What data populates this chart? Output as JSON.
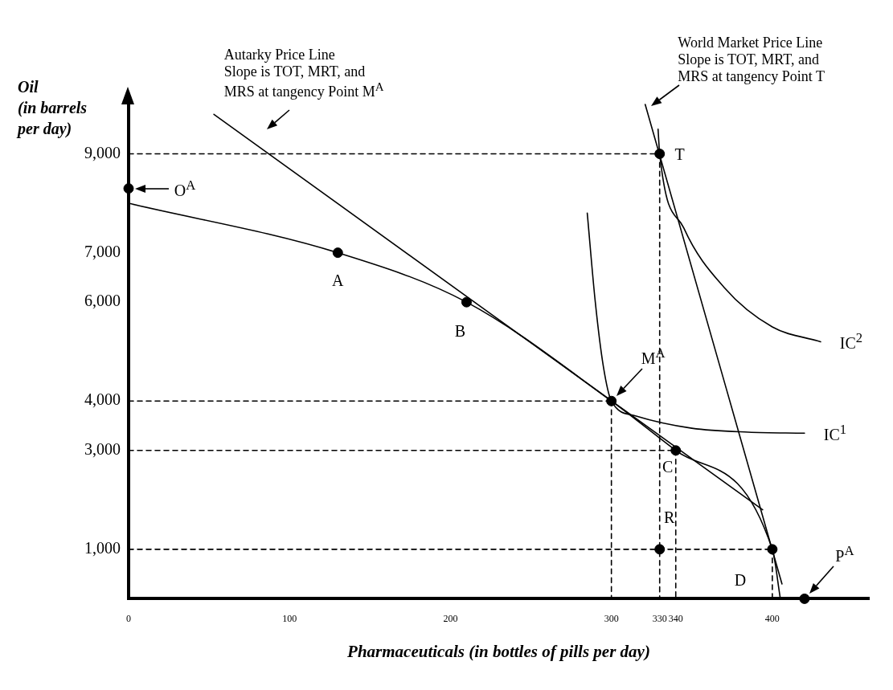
{
  "chart_data": {
    "type": "line",
    "xlabel": "Pharmaceuticals (in bottles of pills per day)",
    "ylabel": "Oil\n(in barrels\nper day)",
    "xlim": [
      0,
      460
    ],
    "ylim": [
      0,
      10000
    ],
    "xticks": [
      0,
      100,
      200,
      300,
      330,
      340,
      400
    ],
    "yticks": [
      {
        "value": 1000,
        "label": "1,000"
      },
      {
        "value": 3000,
        "label": "3,000"
      },
      {
        "value": 4000,
        "label": "4,000"
      },
      {
        "value": 6000,
        "label": "6,000"
      },
      {
        "value": 7000,
        "label": "7,000"
      },
      {
        "value": 9000,
        "label": "9,000"
      }
    ],
    "grid": false,
    "legend": false,
    "series": [
      {
        "color": "#000000",
        "line_style": "solid",
        "marker": "none",
        "x": [
          0,
          130,
          210,
          300,
          340,
          400,
          405
        ],
        "values": [
          8000,
          7000,
          6000,
          4000,
          3000,
          1000,
          0
        ]
      },
      {
        "color": "#000000",
        "line_style": "solid",
        "marker": "none",
        "x": [
          53,
          394
        ],
        "values": [
          9800,
          1800
        ]
      },
      {
        "color": "#000000",
        "line_style": "solid",
        "marker": "none",
        "x": [
          321,
          406
        ],
        "values": [
          10000,
          300
        ]
      },
      {
        "color": "#000000",
        "line_style": "solid",
        "marker": "none",
        "x": [
          285,
          290,
          295,
          300,
          315,
          350,
          385,
          420
        ],
        "values": [
          7800,
          6000,
          4700,
          4000,
          3700,
          3450,
          3370,
          3350
        ]
      },
      {
        "color": "#000000",
        "line_style": "solid",
        "marker": "none",
        "x": [
          329,
          330,
          345,
          370,
          400,
          430
        ],
        "values": [
          9500,
          9000,
          7500,
          6300,
          5500,
          5200
        ]
      },
      {
        "type": "line",
        "color": "#000000",
        "line_style": "dashed",
        "marker": "none",
        "x": [
          0,
          330
        ],
        "values": [
          9000,
          9000
        ]
      },
      {
        "type": "line",
        "color": "#000000",
        "line_style": "dashed",
        "marker": "none",
        "x": [
          0,
          300
        ],
        "values": [
          4000,
          4000
        ]
      },
      {
        "type": "line",
        "color": "#000000",
        "line_style": "dashed",
        "marker": "none",
        "x": [
          0,
          340
        ],
        "values": [
          3000,
          3000
        ]
      },
      {
        "type": "line",
        "color": "#000000",
        "line_style": "dashed",
        "marker": "none",
        "x": [
          0,
          400
        ],
        "values": [
          1000,
          1000
        ]
      },
      {
        "type": "line",
        "color": "#000000",
        "line_style": "dashed",
        "marker": "none",
        "x": [
          300,
          300
        ],
        "values": [
          4000,
          0
        ]
      },
      {
        "type": "line",
        "color": "#000000",
        "line_style": "dashed",
        "marker": "none",
        "x": [
          330,
          330
        ],
        "values": [
          9000,
          0
        ]
      },
      {
        "type": "line",
        "color": "#000000",
        "line_style": "dashed",
        "marker": "none",
        "x": [
          340,
          340
        ],
        "values": [
          3000,
          0
        ]
      },
      {
        "type": "line",
        "color": "#000000",
        "line_style": "dashed",
        "marker": "none",
        "x": [
          400,
          400
        ],
        "values": [
          1000,
          0
        ]
      },
      {
        "type": "scatter",
        "color": "#000000",
        "marker": "circle",
        "x": [
          0,
          130,
          210,
          300,
          330,
          340,
          400,
          330,
          420
        ],
        "values": [
          8300,
          7000,
          6000,
          4000,
          9000,
          3000,
          1000,
          1000,
          0
        ]
      }
    ],
    "annotations": [
      {
        "text": "O$^{A}$",
        "x": 0,
        "y": 8300
      },
      {
        "text": "A",
        "x": 130,
        "y": 7000
      },
      {
        "text": "B",
        "x": 210,
        "y": 6000
      },
      {
        "text": "M$^{A}$",
        "x": 300,
        "y": 4000
      },
      {
        "text": "C",
        "x": 340,
        "y": 3000
      },
      {
        "text": "D",
        "x": 400,
        "y": 1000
      },
      {
        "text": "R",
        "x": 330,
        "y": 1000
      },
      {
        "text": "T",
        "x": 330,
        "y": 9000
      },
      {
        "text": "P$^{A}$",
        "x": 420,
        "y": 0
      },
      {
        "text": "IC$^{1}$",
        "x": 420,
        "y": 3350
      },
      {
        "text": "IC$^{2}$",
        "x": 430,
        "y": 5200
      },
      {
        "text": "Autarky Price Line\nSlope is TOT, MRT, and\nMRS at tangency Point M$^{A}$",
        "x": 79,
        "y": 9200
      },
      {
        "text": "World Market Price Line\nSlope is TOT, MRT, and\nMRS at tangency Point T",
        "x": 322,
        "y": 9900
      }
    ]
  }
}
